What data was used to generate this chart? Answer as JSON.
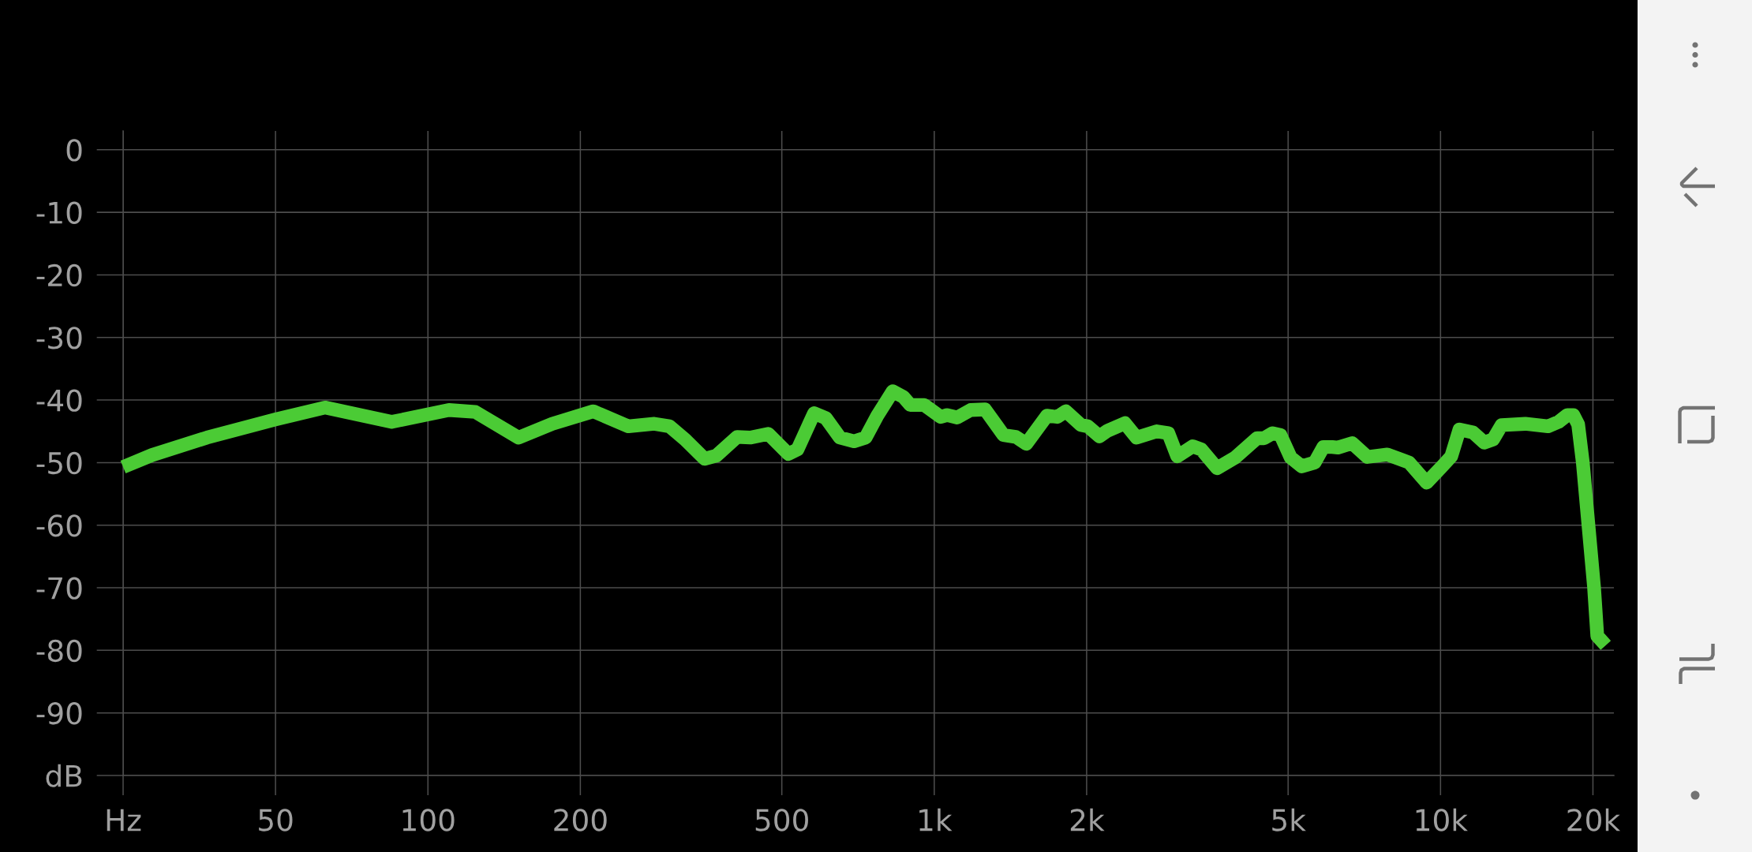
{
  "chart_data": {
    "type": "line",
    "log": "x",
    "grid": true,
    "xlim": [
      25,
      22000
    ],
    "ylim": [
      -100,
      3
    ],
    "xticks": [
      {
        "value": 25,
        "label": "Hz"
      },
      50,
      100,
      200,
      500,
      {
        "value": 1000,
        "label": "1k"
      },
      {
        "value": 2000,
        "label": "2k"
      },
      {
        "value": 5000,
        "label": "5k"
      },
      {
        "value": 10000,
        "label": "10k"
      },
      {
        "value": 20000,
        "label": "20k"
      }
    ],
    "yticks": [
      {
        "value": -100,
        "label": "dB"
      },
      -90,
      -80,
      -70,
      -60,
      -50,
      -40,
      -30,
      -20,
      -10,
      0
    ],
    "x": [
      25,
      28.5,
      36.6,
      42.5,
      50,
      62.6,
      84.8,
      110,
      124,
      151,
      176,
      212,
      249,
      280,
      300,
      322,
      352,
      371,
      408,
      433,
      470,
      515,
      537,
      579,
      611,
      651,
      694,
      732,
      772,
      828,
      869,
      897,
      956,
      1030,
      1060,
      1110,
      1180,
      1260,
      1370,
      1450,
      1520,
      1670,
      1750,
      1820,
      1950,
      2010,
      2120,
      2200,
      2380,
      2510,
      2750,
      2900,
      3020,
      3240,
      3370,
      3620,
      3930,
      4340,
      4480,
      4660,
      4830,
      5060,
      5320,
      5640,
      5870,
      6110,
      6270,
      6690,
      7170,
      7850,
      8670,
      9390,
      10100,
      10500,
      10900,
      11600,
      12200,
      12700,
      13200,
      14700,
      16300,
      17100,
      17800,
      18300,
      18700,
      19100,
      20100,
      20400,
      21200
    ],
    "series": [
      {
        "color": "#4bcb35",
        "values": [
          -50.7,
          -48.8,
          -46.0,
          -44.6,
          -43.1,
          -41.2,
          -43.5,
          -41.6,
          -41.9,
          -46.0,
          -43.8,
          -41.8,
          -44.2,
          -43.8,
          -44.2,
          -46.3,
          -49.4,
          -48.9,
          -45.9,
          -46.0,
          -45.4,
          -48.6,
          -47.9,
          -42.1,
          -42.9,
          -46.0,
          -46.6,
          -46.0,
          -42.5,
          -38.6,
          -39.5,
          -40.8,
          -40.8,
          -42.7,
          -42.4,
          -42.8,
          -41.6,
          -41.5,
          -45.6,
          -45.9,
          -47.0,
          -42.5,
          -42.7,
          -41.8,
          -44.0,
          -44.2,
          -45.8,
          -44.9,
          -43.7,
          -46.0,
          -45.0,
          -45.3,
          -49.0,
          -47.4,
          -47.9,
          -50.9,
          -49.2,
          -46.1,
          -46.1,
          -45.3,
          -45.6,
          -49.2,
          -50.6,
          -50.0,
          -47.5,
          -47.5,
          -47.6,
          -46.9,
          -49.1,
          -48.7,
          -50.0,
          -53.2,
          -50.5,
          -49.0,
          -44.7,
          -45.2,
          -46.8,
          -46.3,
          -44.0,
          -43.8,
          -44.2,
          -43.5,
          -42.4,
          -42.4,
          -43.9,
          -50.0,
          -69.9,
          -77.7,
          -79.2
        ]
      }
    ]
  }
}
